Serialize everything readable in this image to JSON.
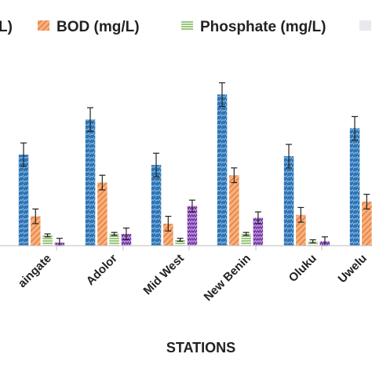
{
  "chart_data": {
    "type": "bar",
    "title": "",
    "xlabel": "STATIONS",
    "ylabel": "",
    "categories": [
      "Maingate",
      "Adolor",
      "Mid West",
      "New Benin",
      "Oluku",
      "Uwelu"
    ],
    "categories_display": [
      "aingate",
      "Adolor",
      "Mid West",
      "New Benin",
      "Oluku",
      "Uwelu"
    ],
    "series": [
      {
        "name": "",
        "color": "#2e75b6",
        "pattern": "wave",
        "values": [
          62,
          86,
          55,
          103,
          61,
          80
        ],
        "errors": [
          8,
          8,
          8,
          8,
          8,
          8
        ]
      },
      {
        "name": "BOD (mg/L)",
        "color": "#ed7d31",
        "pattern": "diagonal",
        "values": [
          20,
          43,
          15,
          48,
          21,
          30
        ],
        "errors": [
          5,
          5,
          5,
          5,
          5,
          5
        ]
      },
      {
        "name": "Phosphate (mg/L)",
        "color": "#70ad47",
        "pattern": "horizontal",
        "values": [
          7,
          8,
          4,
          8,
          3,
          null
        ],
        "errors": [
          1,
          1,
          1,
          1,
          1,
          1
        ]
      },
      {
        "name": "",
        "color": "#7030a0",
        "pattern": "zigzag",
        "values": [
          2,
          8,
          27,
          19,
          3,
          null
        ],
        "errors": [
          3,
          4,
          4,
          4,
          3,
          3
        ]
      }
    ],
    "legend": {
      "position": "top",
      "visible_entries": [
        {
          "text": "L)",
          "series": 0
        },
        {
          "text": "BOD (mg/L)",
          "series": 1
        },
        {
          "text": "Phosphate (mg/L)",
          "series": 2
        }
      ]
    },
    "ylim": [
      0,
      115
    ],
    "y_axis_visible": false,
    "grid": false
  }
}
